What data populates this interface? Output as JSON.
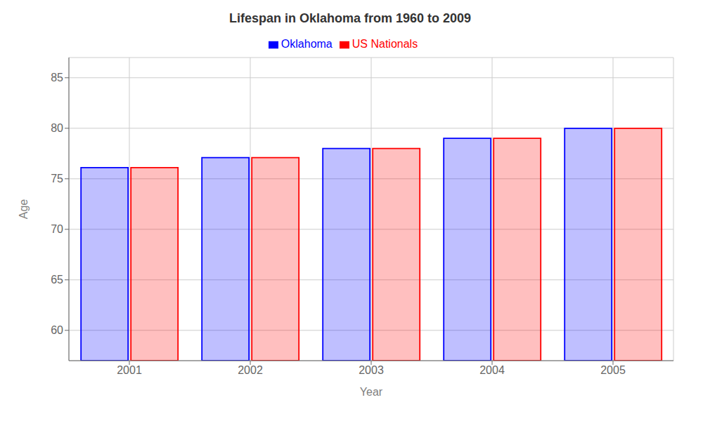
{
  "chart_data": {
    "type": "bar",
    "title": "Lifespan in Oklahoma from 1960 to 2009",
    "x_label": "Year",
    "y_label": "Age",
    "categories": [
      "2001",
      "2002",
      "2003",
      "2004",
      "2005"
    ],
    "series": [
      {
        "name": "Oklahoma",
        "color": "#0000ff",
        "values": [
          76.1,
          77.1,
          78.0,
          79.0,
          80.0
        ]
      },
      {
        "name": "US Nationals",
        "color": "#ff0000",
        "values": [
          76.1,
          77.1,
          78.0,
          79.0,
          80.0
        ]
      }
    ],
    "ylim": [
      57,
      87
    ],
    "yticks": [
      60,
      65,
      70,
      75,
      80,
      85
    ],
    "grid": true,
    "legend": "top"
  }
}
